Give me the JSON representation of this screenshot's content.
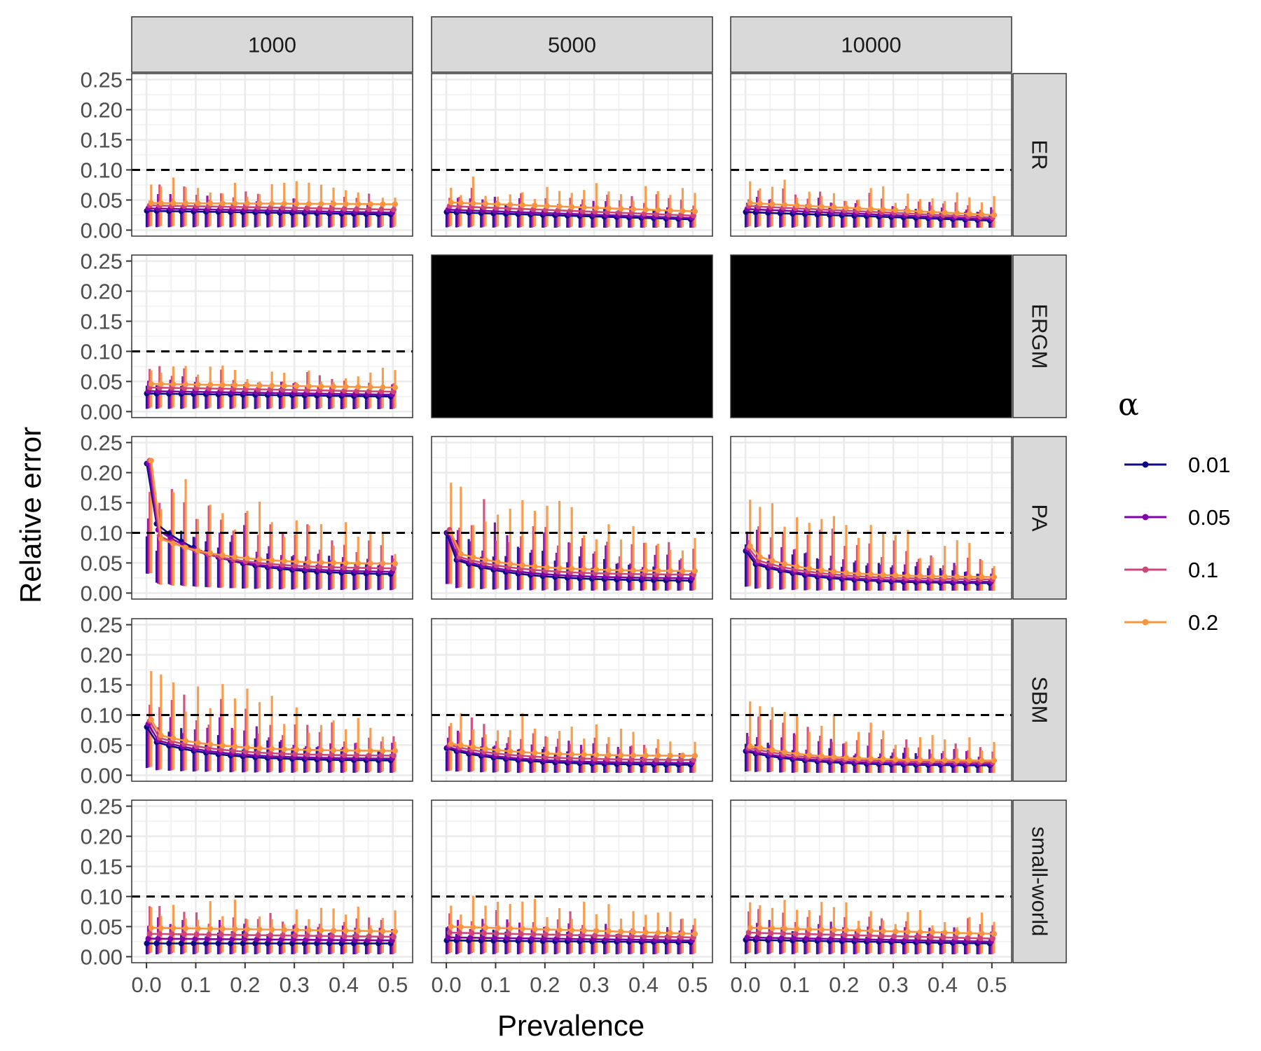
{
  "chart_data": {
    "type": "line",
    "xlabel": "Prevalence",
    "ylabel": "Relative error",
    "xlim": [
      -0.03,
      0.54
    ],
    "ylim": [
      -0.01,
      0.26
    ],
    "x_ticks": [
      "0.0",
      "0.1",
      "0.2",
      "0.3",
      "0.4",
      "0.5"
    ],
    "x_tick_values": [
      0.0,
      0.1,
      0.2,
      0.3,
      0.4,
      0.5
    ],
    "y_ticks": [
      "0.00",
      "0.05",
      "0.10",
      "0.15",
      "0.20",
      "0.25"
    ],
    "y_tick_values": [
      0.0,
      0.05,
      0.1,
      0.15,
      0.2,
      0.25
    ],
    "threshold": 0.1,
    "column_facets": [
      "1000",
      "5000",
      "10000"
    ],
    "row_facets": [
      "ER",
      "ERGM",
      "PA",
      "SBM",
      "small-world"
    ],
    "missing_panels": [
      [
        1,
        1
      ],
      [
        1,
        2
      ]
    ],
    "grid": true,
    "legend": {
      "title": "α",
      "position": "right",
      "entries": [
        {
          "label": "0.01",
          "color": "#0d0887"
        },
        {
          "label": "0.05",
          "color": "#7e03a8"
        },
        {
          "label": "0.1",
          "color": "#cc4778"
        },
        {
          "label": "0.2",
          "color": "#f89540"
        }
      ]
    },
    "x": [
      0.005,
      0.025,
      0.05,
      0.075,
      0.1,
      0.125,
      0.15,
      0.175,
      0.2,
      0.225,
      0.25,
      0.275,
      0.3,
      0.325,
      0.35,
      0.375,
      0.4,
      0.425,
      0.45,
      0.475,
      0.5
    ],
    "panels": [
      {
        "row": "ER",
        "col": "1000",
        "shape": "flat",
        "base": [
          0.032,
          0.036,
          0.041,
          0.045
        ],
        "end": [
          0.026,
          0.029,
          0.034,
          0.043
        ],
        "spread": 0.09
      },
      {
        "row": "ER",
        "col": "5000",
        "shape": "flat",
        "base": [
          0.03,
          0.034,
          0.04,
          0.046
        ],
        "end": [
          0.018,
          0.02,
          0.024,
          0.031
        ],
        "spread": 0.09
      },
      {
        "row": "ER",
        "col": "10000",
        "shape": "flat",
        "base": [
          0.03,
          0.035,
          0.04,
          0.045
        ],
        "end": [
          0.016,
          0.018,
          0.021,
          0.025
        ],
        "spread": 0.085
      },
      {
        "row": "ERGM",
        "col": "1000",
        "shape": "flat",
        "base": [
          0.03,
          0.034,
          0.04,
          0.046
        ],
        "end": [
          0.025,
          0.028,
          0.033,
          0.04
        ],
        "spread": 0.09
      },
      {
        "row": "PA",
        "col": "1000",
        "shape": "decay",
        "start": [
          0.215,
          0.215,
          0.22,
          0.22
        ],
        "base": [
          0.115,
          0.105,
          0.095,
          0.09
        ],
        "end": [
          0.03,
          0.034,
          0.04,
          0.048
        ],
        "spread": 0.22
      },
      {
        "row": "PA",
        "col": "5000",
        "shape": "decay",
        "start": [
          0.1,
          0.1,
          0.105,
          0.1
        ],
        "base": [
          0.055,
          0.057,
          0.06,
          0.065
        ],
        "end": [
          0.02,
          0.024,
          0.03,
          0.036
        ],
        "spread": 0.2
      },
      {
        "row": "PA",
        "col": "10000",
        "shape": "decay",
        "start": [
          0.07,
          0.072,
          0.075,
          0.078
        ],
        "base": [
          0.048,
          0.05,
          0.054,
          0.06
        ],
        "end": [
          0.016,
          0.018,
          0.022,
          0.026
        ],
        "spread": 0.16
      },
      {
        "row": "SBM",
        "col": "1000",
        "shape": "decay",
        "start": [
          0.08,
          0.085,
          0.09,
          0.092
        ],
        "base": [
          0.055,
          0.058,
          0.062,
          0.066
        ],
        "end": [
          0.024,
          0.027,
          0.032,
          0.04
        ],
        "spread": 0.18
      },
      {
        "row": "SBM",
        "col": "5000",
        "shape": "decay",
        "start": [
          0.045,
          0.047,
          0.05,
          0.052
        ],
        "base": [
          0.04,
          0.042,
          0.046,
          0.05
        ],
        "end": [
          0.017,
          0.02,
          0.025,
          0.032
        ],
        "spread": 0.12
      },
      {
        "row": "SBM",
        "col": "10000",
        "shape": "decay",
        "start": [
          0.04,
          0.042,
          0.045,
          0.048
        ],
        "base": [
          0.036,
          0.038,
          0.042,
          0.046
        ],
        "end": [
          0.016,
          0.018,
          0.021,
          0.024
        ],
        "spread": 0.12
      },
      {
        "row": "small-world",
        "col": "1000",
        "shape": "flat",
        "base": [
          0.022,
          0.03,
          0.038,
          0.048
        ],
        "end": [
          0.022,
          0.027,
          0.033,
          0.042
        ],
        "spread": 0.1
      },
      {
        "row": "small-world",
        "col": "5000",
        "shape": "flat",
        "base": [
          0.027,
          0.032,
          0.04,
          0.05
        ],
        "end": [
          0.024,
          0.027,
          0.032,
          0.038
        ],
        "spread": 0.1
      },
      {
        "row": "small-world",
        "col": "10000",
        "shape": "flat",
        "base": [
          0.028,
          0.032,
          0.04,
          0.048
        ],
        "end": [
          0.022,
          0.025,
          0.03,
          0.038
        ],
        "spread": 0.095
      }
    ]
  }
}
